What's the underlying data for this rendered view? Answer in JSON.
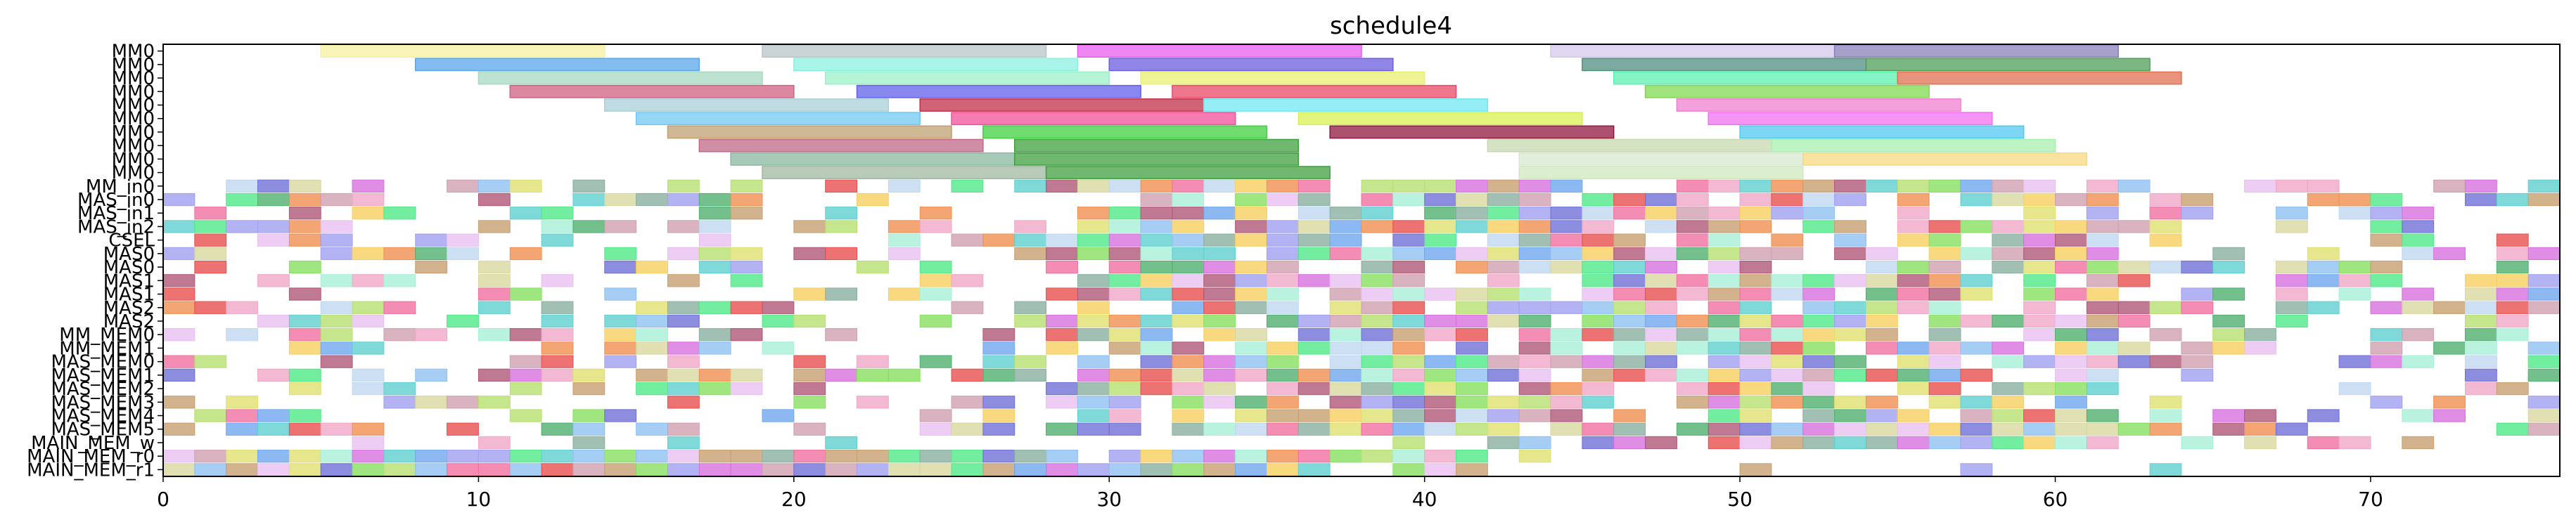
{
  "chart_data": {
    "type": "gantt",
    "title": "schedule4",
    "xlabel": "",
    "ylabel": "",
    "xlim": [
      0,
      76
    ],
    "x_ticks": [
      0,
      10,
      20,
      30,
      40,
      50,
      60,
      70
    ],
    "x_tick_labels": [
      "0",
      "10",
      "20",
      "30",
      "40",
      "50",
      "60",
      "70"
    ],
    "grid": false,
    "legend": "none",
    "rows": [
      "MM0",
      "MM0",
      "MM0",
      "MM0",
      "MM0",
      "MM0",
      "MM0",
      "MM0",
      "MM0",
      "MM0",
      "MM_in0",
      "MAS_in0",
      "MAS_in1",
      "MAS_in2",
      "CSEL",
      "MAS0",
      "MAS0",
      "MAS1",
      "MAS1",
      "MAS2",
      "MAS2",
      "MM_MEM0",
      "MM_MEM1",
      "MAS_MEM0",
      "MAS_MEM1",
      "MAS_MEM2",
      "MAS_MEM3",
      "MAS_MEM4",
      "MAS_MEM5",
      "MAIN_MEM_w",
      "MAIN_MEM_r0",
      "MAIN_MEM_r1"
    ],
    "tasks": [
      {
        "row": 0,
        "start": 5,
        "end": 14,
        "color": "#f7f0a0"
      },
      {
        "row": 0,
        "start": 19,
        "end": 28,
        "color": "#b8c4c8"
      },
      {
        "row": 0,
        "start": 29,
        "end": 38,
        "color": "#e85ef0"
      },
      {
        "row": 0,
        "start": 44,
        "end": 53,
        "color": "#d6c8ec"
      },
      {
        "row": 0,
        "start": 53,
        "end": 62,
        "color": "#8a80b8"
      },
      {
        "row": 1,
        "start": 8,
        "end": 17,
        "color": "#5aa6ea"
      },
      {
        "row": 1,
        "start": 20,
        "end": 29,
        "color": "#8cf0e0"
      },
      {
        "row": 1,
        "start": 30,
        "end": 39,
        "color": "#6b5ee0"
      },
      {
        "row": 1,
        "start": 45,
        "end": 54,
        "color": "#4f8f80"
      },
      {
        "row": 1,
        "start": 54,
        "end": 63,
        "color": "#4f9f5a"
      },
      {
        "row": 2,
        "start": 10,
        "end": 19,
        "color": "#a8d8c0"
      },
      {
        "row": 2,
        "start": 21,
        "end": 30,
        "color": "#9cf0c8"
      },
      {
        "row": 2,
        "start": 31,
        "end": 40,
        "color": "#e8f070"
      },
      {
        "row": 2,
        "start": 46,
        "end": 55,
        "color": "#5cf0b0"
      },
      {
        "row": 2,
        "start": 55,
        "end": 64,
        "color": "#e07050"
      },
      {
        "row": 3,
        "start": 11,
        "end": 20,
        "color": "#d06080"
      },
      {
        "row": 3,
        "start": 22,
        "end": 31,
        "color": "#6060e8"
      },
      {
        "row": 3,
        "start": 32,
        "end": 41,
        "color": "#e84a68"
      },
      {
        "row": 3,
        "start": 47,
        "end": 56,
        "color": "#80d850"
      },
      {
        "row": 4,
        "start": 14,
        "end": 23,
        "color": "#a8d0d8"
      },
      {
        "row": 4,
        "start": 24,
        "end": 33,
        "color": "#c03048"
      },
      {
        "row": 4,
        "start": 33,
        "end": 42,
        "color": "#70e8f0"
      },
      {
        "row": 4,
        "start": 48,
        "end": 57,
        "color": "#f080d0"
      },
      {
        "row": 5,
        "start": 15,
        "end": 24,
        "color": "#70c8f0"
      },
      {
        "row": 5,
        "start": 25,
        "end": 34,
        "color": "#f0509a"
      },
      {
        "row": 5,
        "start": 36,
        "end": 45,
        "color": "#d8f050"
      },
      {
        "row": 5,
        "start": 49,
        "end": 58,
        "color": "#f070f0"
      },
      {
        "row": 6,
        "start": 16,
        "end": 25,
        "color": "#c0a070"
      },
      {
        "row": 6,
        "start": 26,
        "end": 35,
        "color": "#40d040"
      },
      {
        "row": 6,
        "start": 37,
        "end": 46,
        "color": "#901840"
      },
      {
        "row": 6,
        "start": 50,
        "end": 59,
        "color": "#50c8f0"
      },
      {
        "row": 7,
        "start": 17,
        "end": 26,
        "color": "#c06888"
      },
      {
        "row": 7,
        "start": 27,
        "end": 36,
        "color": "#40a040"
      },
      {
        "row": 7,
        "start": 42,
        "end": 51,
        "color": "#c8d8b0"
      },
      {
        "row": 7,
        "start": 51,
        "end": 60,
        "color": "#a8f0b0"
      },
      {
        "row": 8,
        "start": 18,
        "end": 27,
        "color": "#8ab8a0"
      },
      {
        "row": 8,
        "start": 27,
        "end": 36,
        "color": "#40a040"
      },
      {
        "row": 8,
        "start": 43,
        "end": 52,
        "color": "#d8e8d0"
      },
      {
        "row": 8,
        "start": 52,
        "end": 61,
        "color": "#f8d880"
      },
      {
        "row": 9,
        "start": 19,
        "end": 28,
        "color": "#a0b8a0"
      },
      {
        "row": 9,
        "start": 28,
        "end": 37,
        "color": "#40a040"
      },
      {
        "row": 9,
        "start": 43,
        "end": 52,
        "color": "#d0e8c0"
      }
    ],
    "small_block_rows": [
      "MM_in0",
      "MAS_in0",
      "MAS_in1",
      "MAS_in2",
      "CSEL",
      "MAS0",
      "MAS0",
      "MAS1",
      "MAS1",
      "MAS2",
      "MAS2",
      "MM_MEM0",
      "MM_MEM1",
      "MAS_MEM0",
      "MAS_MEM1",
      "MAS_MEM2",
      "MAS_MEM3",
      "MAS_MEM4",
      "MAS_MEM5",
      "MAIN_MEM_w",
      "MAIN_MEM_r0",
      "MAIN_MEM_r1"
    ]
  }
}
